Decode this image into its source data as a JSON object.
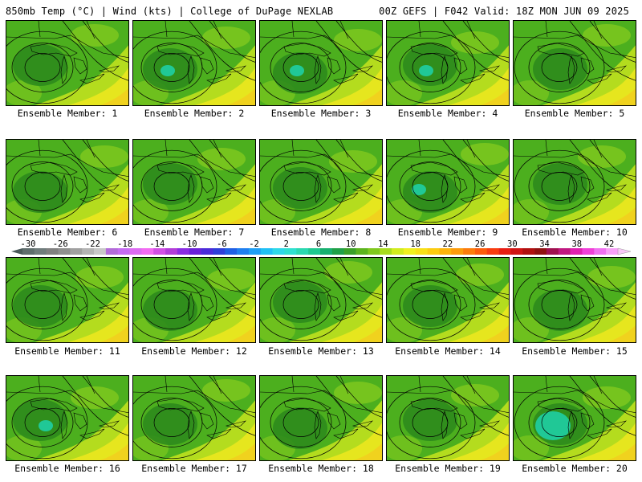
{
  "header": {
    "left": "850mb Temp (°C) | Wind (kts) | College of DuPage NEXLAB",
    "right": "00Z GEFS | F042 Valid: 18Z MON JUN 09 2025"
  },
  "label_prefix": "Ensemble Member: ",
  "members": [
    {
      "id": 1
    },
    {
      "id": 2
    },
    {
      "id": 3
    },
    {
      "id": 4
    },
    {
      "id": 5
    },
    {
      "id": 6
    },
    {
      "id": 7
    },
    {
      "id": 8
    },
    {
      "id": 9
    },
    {
      "id": 10
    },
    {
      "id": 11
    },
    {
      "id": 12
    },
    {
      "id": 13
    },
    {
      "id": 14
    },
    {
      "id": 15
    },
    {
      "id": 16
    },
    {
      "id": 17
    },
    {
      "id": 18
    },
    {
      "id": 19
    },
    {
      "id": 20
    }
  ],
  "colorbar": {
    "tick_labels": [
      "-30",
      "-26",
      "-22",
      "-18",
      "-14",
      "-10",
      "-6",
      "-2",
      "2",
      "6",
      "10",
      "14",
      "18",
      "22",
      "26",
      "30",
      "34",
      "38",
      "42"
    ],
    "colors": [
      "#5f6d6d",
      "#707c7c",
      "#808080",
      "#8f8f8f",
      "#a0a0a0",
      "#b4b4b4",
      "#c8c8c8",
      "#b36bd9",
      "#c66bf2",
      "#dc6bf2",
      "#f26bf2",
      "#d24fe5",
      "#b23cd9",
      "#8a2be2",
      "#6b1fd9",
      "#4b2bd9",
      "#2f3fd9",
      "#1f5fe5",
      "#1f7ff0",
      "#1e9ff5",
      "#20c0f5",
      "#2ed8e8",
      "#2fe0d0",
      "#2ad8b0",
      "#1fc890",
      "#18b070",
      "#20a048",
      "#3aa028",
      "#5cb41e",
      "#80c81e",
      "#a8dc1e",
      "#d2ec1e",
      "#f0f020",
      "#f8e018",
      "#fccc10",
      "#fcb40c",
      "#fc9c0c",
      "#fc7c0c",
      "#fc5c0c",
      "#f83c10",
      "#e81e14",
      "#d01414",
      "#b01010",
      "#901010",
      "#a01050",
      "#c01880",
      "#e020b0",
      "#f040d8",
      "#f070f0",
      "#f8a0f8"
    ]
  },
  "panel_colors": {
    "dark_green": "#2e8b1c",
    "mid_green": "#4caf1e",
    "light_green": "#7ec81e",
    "yellow_green": "#b4dc1e",
    "yellow": "#e6e61e",
    "orange_yellow": "#f0d21e",
    "teal": "#20c896",
    "contour": "#000000"
  }
}
